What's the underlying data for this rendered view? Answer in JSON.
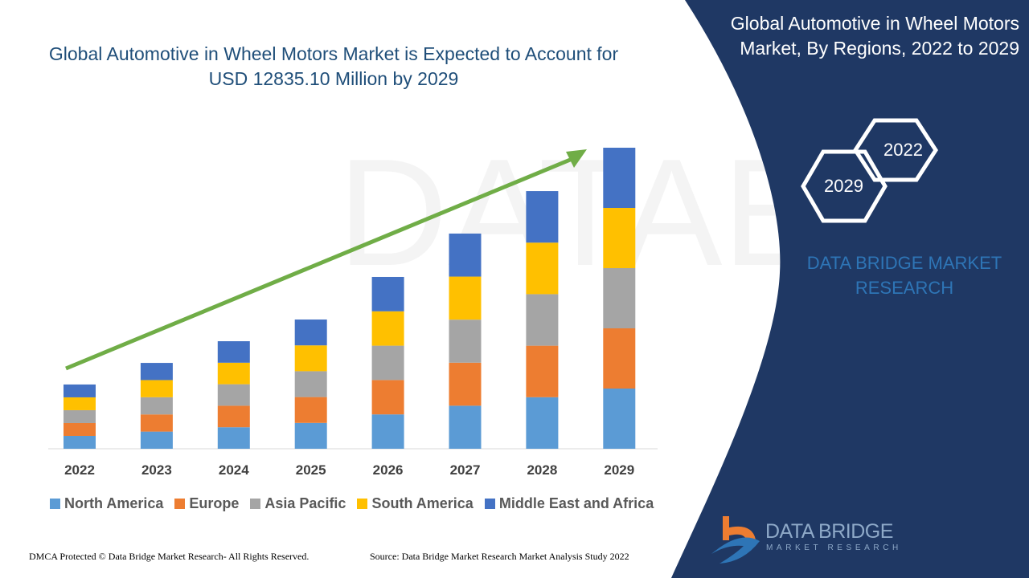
{
  "title": "Global Automotive in Wheel Motors Market is Expected to Account for USD 12835.10 Million by 2029",
  "side_title": "Global Automotive in Wheel Motors Market, By Regions, 2022 to 2029",
  "hex_labels": [
    "2022",
    "2029"
  ],
  "brand_text": "DATA BRIDGE MARKET RESEARCH",
  "logo": {
    "name": "DATA BRIDGE",
    "sub": "MARKET RESEARCH"
  },
  "footer_left": "DMCA Protected © Data Bridge Market Research- All Rights Reserved.",
  "footer_right": "Source: Data Bridge Market Research Market Analysis Study 2022",
  "colors": {
    "panel": "#1f3864",
    "accent": "#2e75b6",
    "arrow": "#70ad47"
  },
  "chart_data": {
    "type": "bar",
    "stacked": true,
    "title": "Global Automotive in Wheel Motors Market is Expected to Account for USD 12835.10 Million by 2029",
    "xlabel": "",
    "ylabel": "",
    "ylim": [
      0,
      12835.1
    ],
    "grid": false,
    "legend": "bottom",
    "categories": [
      "2022",
      "2023",
      "2024",
      "2025",
      "2026",
      "2027",
      "2028",
      "2029"
    ],
    "series": [
      {
        "name": "North America",
        "color": "#5b9bd5",
        "values": [
          548,
          732,
          917,
          1102,
          1465,
          1835,
          2197,
          2567
        ]
      },
      {
        "name": "Europe",
        "color": "#ed7d31",
        "values": [
          548,
          732,
          917,
          1102,
          1465,
          1835,
          2197,
          2567
        ]
      },
      {
        "name": "Asia Pacific",
        "color": "#a5a5a5",
        "values": [
          548,
          732,
          917,
          1102,
          1465,
          1835,
          2197,
          2567
        ]
      },
      {
        "name": "South America",
        "color": "#ffc000",
        "values": [
          548,
          732,
          917,
          1102,
          1465,
          1835,
          2197,
          2567
        ]
      },
      {
        "name": "Middle East and Africa",
        "color": "#4472c4",
        "values": [
          548,
          732,
          917,
          1102,
          1465,
          1835,
          2197,
          2567
        ]
      }
    ]
  }
}
